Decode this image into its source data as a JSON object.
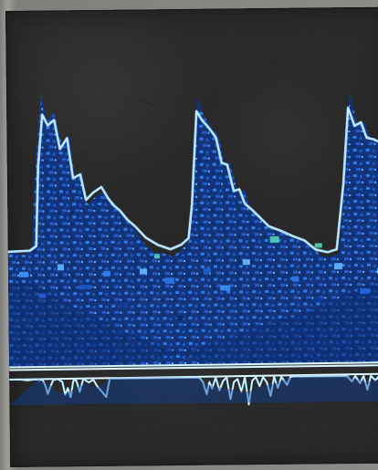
{
  "image": {
    "colors": {
      "frame": "#8d8d8b",
      "scan_background": "#272827",
      "flow_dark": "#123a8f",
      "flow_mid": "#1f67d9",
      "flow_light": "#4d9dff",
      "highlight": "#8ed3ff",
      "baseline": "#dff8ff",
      "accent": "#51d3b7"
    }
  }
}
